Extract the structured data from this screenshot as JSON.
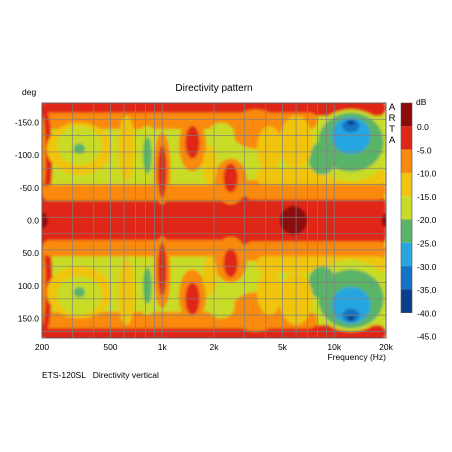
{
  "chart_data": {
    "type": "heatmap",
    "title": "Directivity pattern",
    "ylabel": "deg",
    "xlabel": "Frequency (Hz)",
    "footer": "ETS-120SL   Directivity vertical",
    "watermark": [
      "A",
      "R",
      "T",
      "A"
    ],
    "x_scale": "log",
    "xlim": [
      200,
      20000
    ],
    "ylim": [
      -180,
      180
    ],
    "x_ticks": [
      {
        "value": 200,
        "label": "200"
      },
      {
        "value": 500,
        "label": "500"
      },
      {
        "value": 1000,
        "label": "1k"
      },
      {
        "value": 2000,
        "label": "2k"
      },
      {
        "value": 5000,
        "label": "5k"
      },
      {
        "value": 10000,
        "label": "10k"
      },
      {
        "value": 20000,
        "label": "20k"
      }
    ],
    "y_ticks": [
      {
        "value": -150,
        "label": "-150.0"
      },
      {
        "value": -100,
        "label": "-100.0"
      },
      {
        "value": -50,
        "label": "-50.0"
      },
      {
        "value": 0,
        "label": "0.0"
      },
      {
        "value": 50,
        "label": "50.0"
      },
      {
        "value": 100,
        "label": "100.0"
      },
      {
        "value": 150,
        "label": "150.0"
      }
    ],
    "colorbar": {
      "unit": "dB",
      "bands": [
        {
          "label": "0.0",
          "color": "#8b0a0a"
        },
        {
          "label": "-5.0",
          "color": "#e02618"
        },
        {
          "label": "-10.0",
          "color": "#f98a10"
        },
        {
          "label": "-15.0",
          "color": "#f0c410"
        },
        {
          "label": "-20.0",
          "color": "#c8dc26"
        },
        {
          "label": "-25.0",
          "color": "#5ab468"
        },
        {
          "label": "-30.0",
          "color": "#28a6e0"
        },
        {
          "label": "-35.0",
          "color": "#1473c4"
        },
        {
          "label": "-40.0",
          "color": "#0a3f8e"
        },
        {
          "label": "-45.0",
          "color": null
        }
      ]
    },
    "features": [
      {
        "freq": 200,
        "deg": 0,
        "level_db": -3
      },
      {
        "freq": 550,
        "deg": 0,
        "level_db": -3
      },
      {
        "freq": 3000,
        "deg": 0,
        "level_db": -3
      },
      {
        "freq": 5800,
        "deg": 0,
        "level_db": 0
      },
      {
        "freq": 12000,
        "deg": 0,
        "level_db": -5
      },
      {
        "freq": 20000,
        "deg": 0,
        "level_db": 0
      },
      {
        "freq": 320,
        "deg": 115,
        "level_db": -18
      },
      {
        "freq": 820,
        "deg": 100,
        "level_db": -23
      },
      {
        "freq": 1000,
        "deg": 70,
        "level_db": -6
      },
      {
        "freq": 1500,
        "deg": 120,
        "level_db": -9
      },
      {
        "freq": 2500,
        "deg": 55,
        "level_db": -8
      },
      {
        "freq": 3500,
        "deg": 145,
        "level_db": -9
      },
      {
        "freq": 8000,
        "deg": 80,
        "level_db": -24
      },
      {
        "freq": 12500,
        "deg": 130,
        "level_db": -29
      },
      {
        "freq": 12500,
        "deg": 150,
        "level_db": -36
      }
    ]
  }
}
